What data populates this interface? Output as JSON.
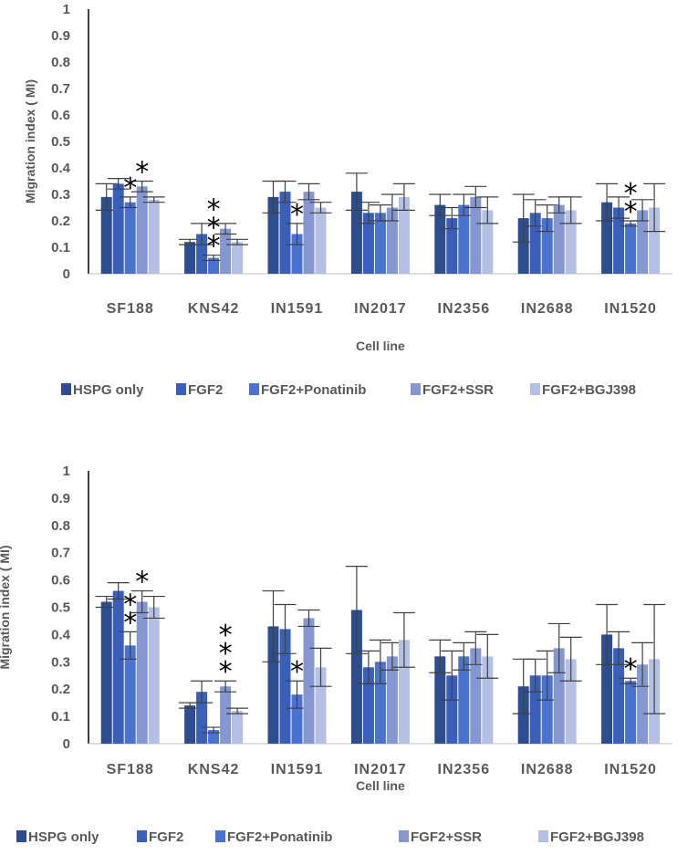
{
  "chart_data": [
    {
      "type": "bar",
      "title": "",
      "xlabel": "Cell line",
      "ylabel": "Migration index ( MI)",
      "ylim": [
        0,
        1
      ],
      "yticks": [
        "0",
        "0.1",
        "0.2",
        "0.3",
        "0.4",
        "0.5",
        "0.6",
        "0.7",
        "0.8",
        "0.9",
        "1"
      ],
      "grid": false,
      "legend_position": "bottom",
      "categories": [
        "SF188",
        "KNS42",
        "IN1591",
        "IN2017",
        "IN2356",
        "IN2688",
        "IN1520"
      ],
      "series": [
        {
          "name": "HSPG only",
          "color": "#2e4d8f",
          "values": [
            0.29,
            0.12,
            0.29,
            0.31,
            0.26,
            0.21,
            0.27
          ],
          "errors": [
            0.05,
            0.01,
            0.06,
            0.07,
            0.04,
            0.09,
            0.07
          ]
        },
        {
          "name": "FGF2",
          "color": "#3a5fb8",
          "values": [
            0.34,
            0.15,
            0.31,
            0.23,
            0.21,
            0.23,
            0.25
          ],
          "errors": [
            0.02,
            0.04,
            0.04,
            0.04,
            0.04,
            0.05,
            0.04
          ]
        },
        {
          "name": "FGF2+Ponatinib",
          "color": "#4a73cf",
          "values": [
            0.27,
            0.06,
            0.15,
            0.23,
            0.26,
            0.21,
            0.19
          ],
          "errors": [
            0.02,
            0.01,
            0.04,
            0.03,
            0.04,
            0.05,
            0.01
          ]
        },
        {
          "name": "FGF2+SSR",
          "color": "#8597d0",
          "values": [
            0.33,
            0.17,
            0.31,
            0.25,
            0.29,
            0.26,
            0.24
          ],
          "errors": [
            0.02,
            0.02,
            0.03,
            0.05,
            0.04,
            0.03,
            0.04
          ]
        },
        {
          "name": "FGF2+BGJ398",
          "color": "#b3c0e3",
          "values": [
            0.28,
            0.12,
            0.25,
            0.29,
            0.24,
            0.24,
            0.25
          ],
          "errors": [
            0.01,
            0.01,
            0.02,
            0.05,
            0.05,
            0.05,
            0.09
          ]
        }
      ],
      "annotations": [
        {
          "category": "SF188",
          "series": "FGF2+Ponatinib",
          "label": "*"
        },
        {
          "category": "SF188",
          "series": "FGF2+SSR",
          "label": "*"
        },
        {
          "category": "KNS42",
          "series": "FGF2+Ponatinib",
          "label": "***"
        },
        {
          "category": "IN1591",
          "series": "FGF2+Ponatinib",
          "label": "*"
        },
        {
          "category": "IN1520",
          "series": "FGF2+Ponatinib",
          "label": "**"
        }
      ]
    },
    {
      "type": "bar",
      "title": "",
      "xlabel": "Cell line",
      "ylabel": "Migration index ( MI)",
      "ylim": [
        0,
        1
      ],
      "yticks": [
        "0",
        "0.1",
        "0.2",
        "0.3",
        "0.4",
        "0.5",
        "0.6",
        "0.7",
        "0.8",
        "0.9",
        "1"
      ],
      "grid": false,
      "legend_position": "bottom",
      "categories": [
        "SF188",
        "KNS42",
        "IN1591",
        "IN2017",
        "IN2356",
        "IN2688",
        "IN1520"
      ],
      "series": [
        {
          "name": "HSPG only",
          "color": "#2e4d8f",
          "values": [
            0.52,
            0.14,
            0.43,
            0.49,
            0.32,
            0.21,
            0.4
          ],
          "errors": [
            0.02,
            0.01,
            0.13,
            0.16,
            0.06,
            0.1,
            0.11
          ]
        },
        {
          "name": "FGF2",
          "color": "#3a5fb8",
          "values": [
            0.56,
            0.19,
            0.42,
            0.28,
            0.25,
            0.25,
            0.35
          ],
          "errors": [
            0.03,
            0.04,
            0.09,
            0.06,
            0.09,
            0.06,
            0.06
          ]
        },
        {
          "name": "FGF2+Ponatinib",
          "color": "#4a73cf",
          "values": [
            0.36,
            0.05,
            0.18,
            0.3,
            0.32,
            0.25,
            0.23
          ],
          "errors": [
            0.05,
            0.01,
            0.05,
            0.08,
            0.05,
            0.09,
            0.01
          ]
        },
        {
          "name": "FGF2+SSR",
          "color": "#8597d0",
          "values": [
            0.52,
            0.21,
            0.46,
            0.32,
            0.35,
            0.35,
            0.29
          ],
          "errors": [
            0.04,
            0.02,
            0.03,
            0.05,
            0.06,
            0.09,
            0.08
          ]
        },
        {
          "name": "FGF2+BGJ398",
          "color": "#b3c0e3",
          "values": [
            0.5,
            0.12,
            0.28,
            0.38,
            0.32,
            0.31,
            0.31
          ],
          "errors": [
            0.04,
            0.01,
            0.07,
            0.1,
            0.08,
            0.08,
            0.2
          ]
        }
      ],
      "annotations": [
        {
          "category": "SF188",
          "series": "FGF2+Ponatinib",
          "label": "**"
        },
        {
          "category": "SF188",
          "series": "FGF2+SSR",
          "label": "*"
        },
        {
          "category": "KNS42",
          "series": "FGF2+SSR",
          "label": "***"
        },
        {
          "category": "IN1591",
          "series": "FGF2+Ponatinib",
          "label": "*"
        },
        {
          "category": "IN1520",
          "series": "FGF2+Ponatinib",
          "label": "*"
        }
      ]
    }
  ]
}
